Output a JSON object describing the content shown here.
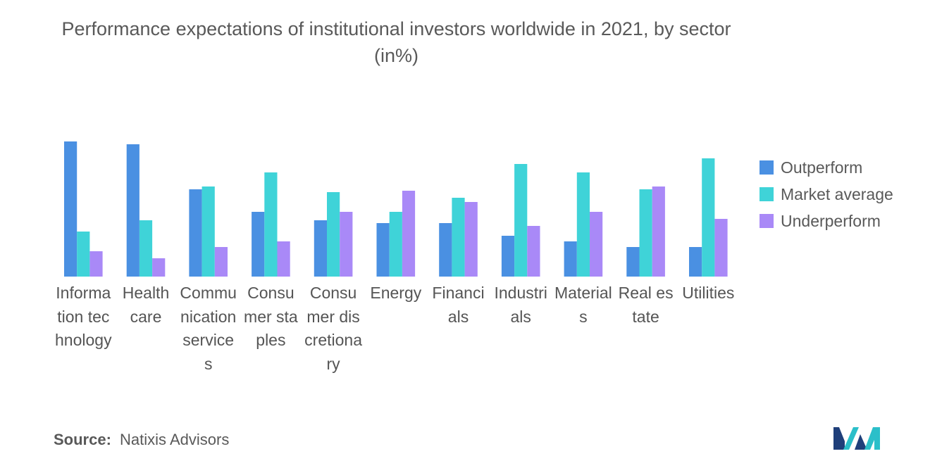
{
  "title": "Performance expectations of institutional investors worldwide in 2021, by sector (in%)",
  "chart_data": {
    "type": "bar",
    "title": "Performance expectations of institutional investors worldwide in 2021, by sector (in%)",
    "xlabel": "",
    "ylabel": "",
    "ylim": [
      0,
      50
    ],
    "grid": false,
    "legend_position": "right",
    "categories": [
      "Information technology",
      "Health care",
      "Communication services",
      "Consumer staples",
      "Consumer discretionary",
      "Energy",
      "Financials",
      "Industrials",
      "Materials",
      "Real estate",
      "Utilities"
    ],
    "series": [
      {
        "name": "Outperform",
        "color": "#4a90e2",
        "values": [
          48,
          47,
          31,
          23,
          20,
          19,
          19,
          14.5,
          12.5,
          10.5,
          10.5
        ]
      },
      {
        "name": "Market average",
        "color": "#3fd3d8",
        "values": [
          16,
          20,
          32,
          37,
          30,
          23,
          28,
          40,
          37,
          31,
          42
        ]
      },
      {
        "name": "Underperform",
        "color": "#a989f7",
        "values": [
          9,
          6.5,
          10.5,
          12.5,
          23,
          30.5,
          26.5,
          18,
          23,
          32,
          20.5
        ]
      }
    ]
  },
  "source": {
    "key": "Source:",
    "value": "Natixis Advisors"
  },
  "logo": {
    "icon": "mordor-intelligence-logo-icon",
    "colors": [
      "#1f3f7a",
      "#2bbfc9"
    ]
  }
}
